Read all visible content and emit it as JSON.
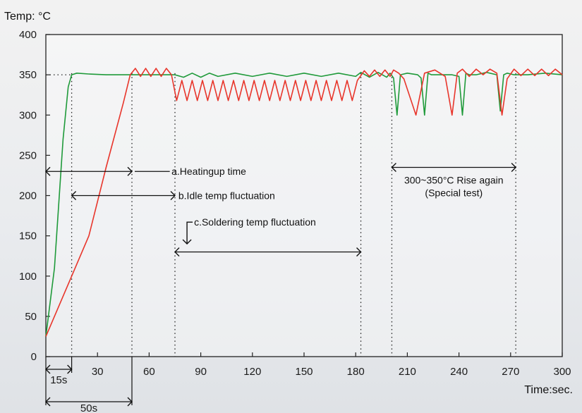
{
  "chart_data": {
    "type": "line",
    "ylabel": "Temp: °C",
    "xlabel": "Time:sec.",
    "xlim": [
      0,
      300
    ],
    "ylim": [
      0,
      400
    ],
    "x_ticks": [
      "30",
      "60",
      "90",
      "120",
      "150",
      "180",
      "210",
      "240",
      "270",
      "300"
    ],
    "y_ticks": [
      "0",
      "50",
      "100",
      "150",
      "200",
      "250",
      "300",
      "350",
      "400"
    ],
    "grid": false,
    "colors": {
      "green": "#1f9a3a",
      "red": "#e8352b",
      "axis": "#222222"
    },
    "series": [
      {
        "color": "green",
        "x": [
          0,
          5,
          10,
          13,
          15,
          18,
          25,
          35,
          50,
          60,
          75,
          80,
          85,
          90,
          95,
          100,
          110,
          120,
          130,
          140,
          150,
          160,
          170,
          180,
          183,
          188,
          193,
          198,
          200,
          202,
          204,
          206,
          210,
          216,
          218,
          220,
          222,
          224,
          230,
          236,
          240,
          242,
          244,
          246,
          250,
          256,
          262,
          264,
          266,
          268,
          272,
          280,
          290,
          300
        ],
        "y": [
          25,
          110,
          270,
          335,
          350,
          352,
          351,
          350,
          350,
          350,
          350,
          347,
          352,
          347,
          352,
          348,
          352,
          348,
          352,
          348,
          352,
          348,
          352,
          348,
          353,
          347,
          353,
          347,
          352,
          346,
          300,
          350,
          352,
          350,
          346,
          300,
          352,
          350,
          350,
          350,
          348,
          300,
          352,
          350,
          350,
          353,
          350,
          305,
          350,
          352,
          350,
          350,
          352,
          350
        ]
      },
      {
        "color": "red",
        "x": [
          0,
          15,
          25,
          35,
          45,
          49,
          52,
          55,
          58,
          61,
          64,
          67,
          70,
          73,
          76,
          79,
          82,
          85,
          88,
          91,
          94,
          97,
          100,
          103,
          106,
          109,
          112,
          115,
          118,
          121,
          124,
          127,
          130,
          133,
          136,
          139,
          142,
          145,
          148,
          151,
          154,
          157,
          160,
          163,
          166,
          169,
          172,
          175,
          178,
          181,
          185,
          188,
          191,
          194,
          197,
          200,
          202,
          205,
          208,
          215,
          220,
          226,
          232,
          236,
          239,
          242,
          246,
          250,
          254,
          258,
          262,
          265,
          268,
          272,
          276,
          280,
          284,
          288,
          292,
          296,
          300
        ],
        "y": [
          25,
          100,
          150,
          235,
          315,
          350,
          358,
          348,
          358,
          348,
          358,
          348,
          358,
          350,
          318,
          343,
          318,
          343,
          318,
          343,
          318,
          343,
          318,
          343,
          318,
          343,
          318,
          343,
          318,
          343,
          318,
          343,
          318,
          343,
          318,
          343,
          318,
          343,
          318,
          343,
          318,
          343,
          318,
          343,
          318,
          343,
          318,
          343,
          318,
          343,
          355,
          348,
          356,
          348,
          356,
          348,
          356,
          352,
          345,
          300,
          352,
          356,
          348,
          300,
          352,
          357,
          348,
          357,
          350,
          357,
          352,
          300,
          345,
          357,
          349,
          357,
          349,
          357,
          349,
          357,
          350
        ]
      }
    ],
    "reference_line": {
      "y": 350
    },
    "vlines": [
      15,
      50,
      75,
      183,
      201,
      273
    ],
    "annotations": [
      {
        "label": "a.Heatingup time",
        "from": 0,
        "to": 50,
        "y": 230
      },
      {
        "label": "b.Idle temp fluctuation",
        "from": 15,
        "to": 75,
        "y": 200
      },
      {
        "label": "c.Soldering temp fluctuation",
        "from": 75,
        "to": 183,
        "y": 130
      },
      {
        "label": "300~350°C Rise again",
        "label2": "(Special  test)",
        "from": 201,
        "to": 273,
        "y": 235
      }
    ],
    "brackets": [
      {
        "label": "15s",
        "from": 0,
        "to": 15
      },
      {
        "label": "50s",
        "from": 0,
        "to": 50
      }
    ]
  }
}
